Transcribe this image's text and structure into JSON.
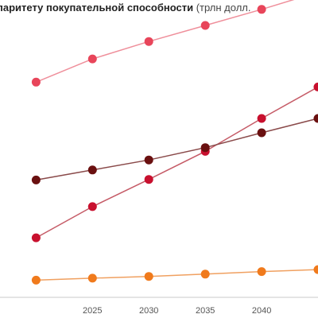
{
  "chart_data": {
    "type": "line",
    "title": "паритету покупательной способности",
    "title_unit": "(трлн долл.",
    "x": [
      2020,
      2025,
      2030,
      2035,
      2040,
      2045
    ],
    "xlim": [
      2016.8,
      2045
    ],
    "ylim": [
      0,
      100
    ],
    "grid": false,
    "legend": "none",
    "series": [
      {
        "color": "#e8455a",
        "line_color": "#ef8f9b",
        "values": [
          75.2,
          83.3,
          89.4,
          95.0,
          100.6,
          106.6
        ]
      },
      {
        "color": "#c8102e",
        "line_color": "#c55a66",
        "values": [
          20.8,
          31.7,
          41.2,
          51.0,
          62.5,
          73.5
        ]
      },
      {
        "color": "#6a1010",
        "line_color": "#8a4a4a",
        "values": [
          41.0,
          44.5,
          48.0,
          52.3,
          57.5,
          62.5
        ]
      },
      {
        "color": "#f07a1c",
        "line_color": "#f0a060",
        "values": [
          6.0,
          6.7,
          7.3,
          8.1,
          9.0,
          9.7
        ]
      }
    ],
    "x_tick_labels": [
      "2025",
      "2030",
      "2035",
      "2040"
    ]
  }
}
